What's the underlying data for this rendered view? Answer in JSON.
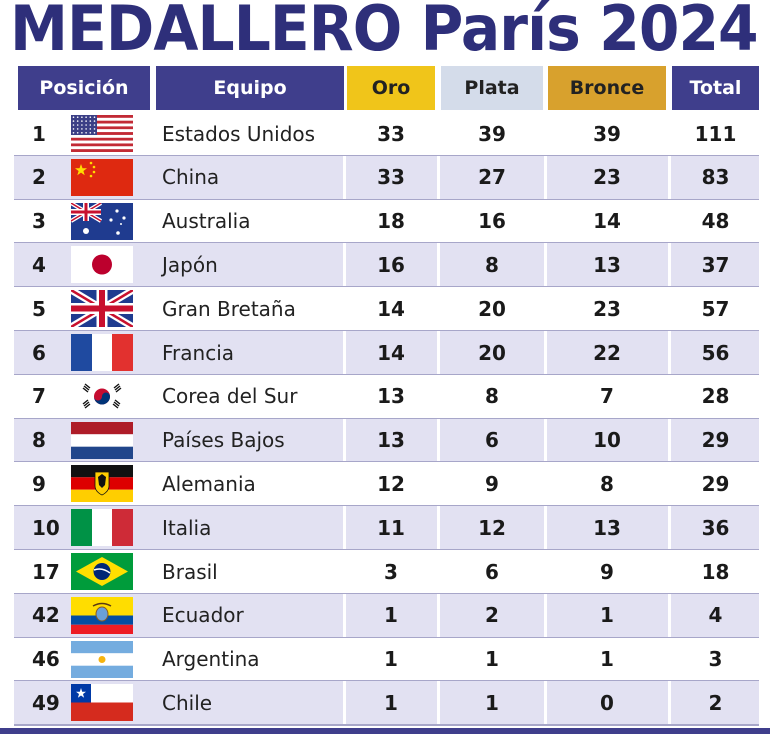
{
  "title": "MEDALLERO París 2024",
  "headers": {
    "position": "Posición",
    "team": "Equipo",
    "gold": "Oro",
    "silver": "Plata",
    "bronze": "Bronce",
    "total": "Total"
  },
  "colors": {
    "title": "#2e2f7a",
    "header_navy": "#3f3e8c",
    "gold": "#f0c51a",
    "silver": "#d4dcea",
    "bronze": "#d8a12d",
    "row_alt": "#e2e1f2"
  },
  "rows": [
    {
      "pos": "1",
      "flag": "usa-flag-icon",
      "team": "Estados Unidos",
      "gold": "33",
      "silver": "39",
      "bronze": "39",
      "total": "111"
    },
    {
      "pos": "2",
      "flag": "china-flag-icon",
      "team": "China",
      "gold": "33",
      "silver": "27",
      "bronze": "23",
      "total": "83"
    },
    {
      "pos": "3",
      "flag": "australia-flag-icon",
      "team": "Australia",
      "gold": "18",
      "silver": "16",
      "bronze": "14",
      "total": "48"
    },
    {
      "pos": "4",
      "flag": "japan-flag-icon",
      "team": "Japón",
      "gold": "16",
      "silver": "8",
      "bronze": "13",
      "total": "37"
    },
    {
      "pos": "5",
      "flag": "uk-flag-icon",
      "team": "Gran Bretaña",
      "gold": "14",
      "silver": "20",
      "bronze": "23",
      "total": "57"
    },
    {
      "pos": "6",
      "flag": "france-flag-icon",
      "team": "Francia",
      "gold": "14",
      "silver": "20",
      "bronze": "22",
      "total": "56"
    },
    {
      "pos": "7",
      "flag": "south-korea-flag-icon",
      "team": "Corea del Sur",
      "gold": "13",
      "silver": "8",
      "bronze": "7",
      "total": "28"
    },
    {
      "pos": "8",
      "flag": "netherlands-flag-icon",
      "team": "Países Bajos",
      "gold": "13",
      "silver": "6",
      "bronze": "10",
      "total": "29"
    },
    {
      "pos": "9",
      "flag": "germany-flag-icon",
      "team": "Alemania",
      "gold": "12",
      "silver": "9",
      "bronze": "8",
      "total": "29"
    },
    {
      "pos": "10",
      "flag": "italy-flag-icon",
      "team": "Italia",
      "gold": "11",
      "silver": "12",
      "bronze": "13",
      "total": "36"
    },
    {
      "pos": "17",
      "flag": "brazil-flag-icon",
      "team": "Brasil",
      "gold": "3",
      "silver": "6",
      "bronze": "9",
      "total": "18"
    },
    {
      "pos": "42",
      "flag": "ecuador-flag-icon",
      "team": "Ecuador",
      "gold": "1",
      "silver": "2",
      "bronze": "1",
      "total": "4"
    },
    {
      "pos": "46",
      "flag": "argentina-flag-icon",
      "team": "Argentina",
      "gold": "1",
      "silver": "1",
      "bronze": "1",
      "total": "3"
    },
    {
      "pos": "49",
      "flag": "chile-flag-icon",
      "team": "Chile",
      "gold": "1",
      "silver": "1",
      "bronze": "0",
      "total": "2"
    }
  ],
  "chart_data": {
    "type": "table",
    "title": "MEDALLERO París 2024",
    "columns": [
      "Posición",
      "Equipo",
      "Oro",
      "Plata",
      "Bronce",
      "Total"
    ],
    "rows": [
      [
        "1",
        "Estados Unidos",
        33,
        39,
        39,
        111
      ],
      [
        "2",
        "China",
        33,
        27,
        23,
        83
      ],
      [
        "3",
        "Australia",
        18,
        16,
        14,
        48
      ],
      [
        "4",
        "Japón",
        16,
        8,
        13,
        37
      ],
      [
        "5",
        "Gran Bretaña",
        14,
        20,
        23,
        57
      ],
      [
        "6",
        "Francia",
        14,
        20,
        22,
        56
      ],
      [
        "7",
        "Corea del Sur",
        13,
        8,
        7,
        28
      ],
      [
        "8",
        "Países Bajos",
        13,
        6,
        10,
        29
      ],
      [
        "9",
        "Alemania",
        12,
        9,
        8,
        29
      ],
      [
        "10",
        "Italia",
        11,
        12,
        13,
        36
      ],
      [
        "17",
        "Brasil",
        3,
        6,
        9,
        18
      ],
      [
        "42",
        "Ecuador",
        1,
        2,
        1,
        4
      ],
      [
        "46",
        "Argentina",
        1,
        1,
        1,
        3
      ],
      [
        "49",
        "Chile",
        1,
        1,
        0,
        2
      ]
    ]
  }
}
